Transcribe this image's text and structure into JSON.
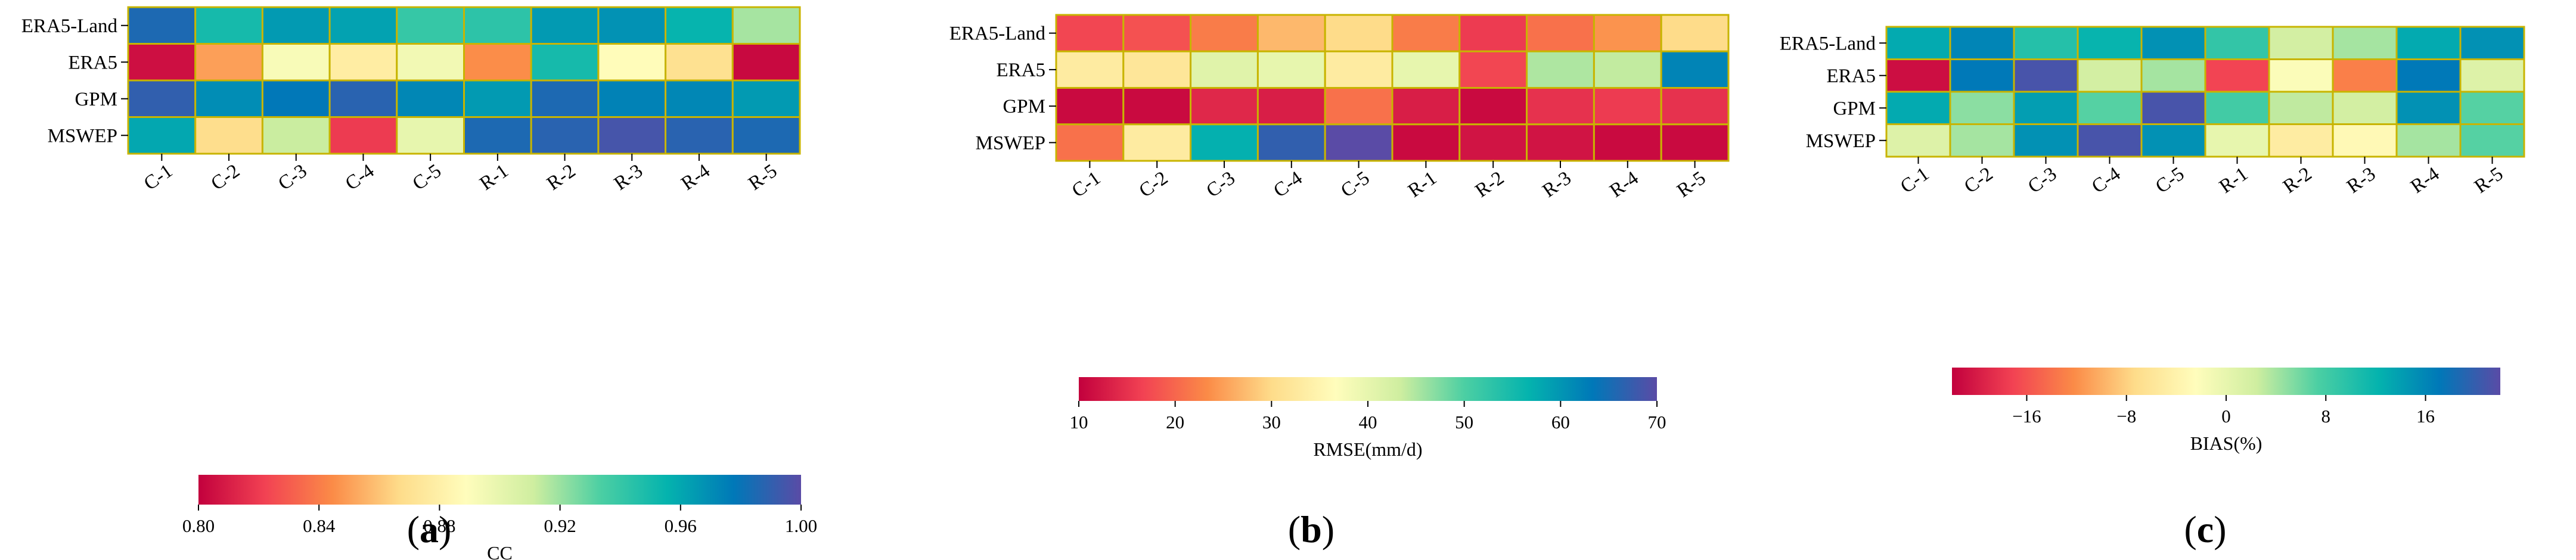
{
  "palette": [
    "#c2003d",
    "#f24253",
    "#fb8b47",
    "#fedc8a",
    "#fffdbc",
    "#cfeea0",
    "#4ccfa3",
    "#04b3ae",
    "#0078b8",
    "#5a4ba6"
  ],
  "chart_data": [
    {
      "type": "heatmap",
      "panel_open": "(",
      "panel_letter": "a",
      "panel_close": ")",
      "rows": [
        "ERA5-Land",
        "ERA5",
        "GPM",
        "MSWEP"
      ],
      "cols": [
        "C-1",
        "C-2",
        "C-3",
        "C-4",
        "C-5",
        "R-1",
        "R-2",
        "R-3",
        "R-4",
        "R-5"
      ],
      "values": [
        [
          0.985,
          0.95,
          0.965,
          0.962,
          0.94,
          0.943,
          0.965,
          0.968,
          0.955,
          0.918
        ],
        [
          0.805,
          0.85,
          0.892,
          0.878,
          0.895,
          0.845,
          0.95,
          0.888,
          0.87,
          0.803
        ],
        [
          0.99,
          0.97,
          0.978,
          0.988,
          0.972,
          0.965,
          0.985,
          0.974,
          0.972,
          0.965
        ],
        [
          0.96,
          0.868,
          0.912,
          0.82,
          0.9,
          0.985,
          0.988,
          0.995,
          0.988,
          0.985
        ]
      ],
      "vmin": 0.8,
      "vmax": 1.0,
      "colorbar_ticks": [
        "0.80",
        "0.84",
        "0.88",
        "0.92",
        "0.96",
        "1.00"
      ],
      "colorbar_tick_values": [
        0.8,
        0.84,
        0.88,
        0.92,
        0.96,
        1.0
      ],
      "colorbar_label": "CC"
    },
    {
      "type": "heatmap",
      "panel_open": "(",
      "panel_letter": "b",
      "panel_close": ")",
      "rows": [
        "ERA5-Land",
        "ERA5",
        "GPM",
        "MSWEP"
      ],
      "cols": [
        "C-1",
        "C-2",
        "C-3",
        "C-4",
        "C-5",
        "R-1",
        "R-2",
        "R-3",
        "R-4",
        "R-5"
      ],
      "values": [
        [
          17,
          18,
          22,
          27,
          30,
          22,
          16,
          21,
          24,
          30
        ],
        [
          33,
          32,
          41,
          40,
          33,
          40,
          17,
          45,
          44,
          62
        ],
        [
          11,
          11,
          14,
          13,
          21,
          13,
          11,
          15,
          16,
          15
        ],
        [
          21,
          33,
          57,
          67,
          70,
          11,
          12,
          12,
          11,
          11
        ]
      ],
      "vmin": 10,
      "vmax": 70,
      "colorbar_ticks": [
        "10",
        "20",
        "30",
        "40",
        "50",
        "60",
        "70"
      ],
      "colorbar_tick_values": [
        10,
        20,
        30,
        40,
        50,
        60,
        70
      ],
      "colorbar_label": "RMSE(mm/d)"
    },
    {
      "type": "heatmap",
      "panel_open": "(",
      "panel_letter": "c",
      "panel_close": ")",
      "rows": [
        "ERA5-Land",
        "ERA5",
        "GPM",
        "MSWEP"
      ],
      "cols": [
        "C-1",
        "C-2",
        "C-3",
        "C-4",
        "C-5",
        "R-1",
        "R-2",
        "R-3",
        "R-4",
        "R-5"
      ],
      "values": [
        [
          13,
          16,
          10,
          12,
          15,
          9,
          2,
          4,
          13,
          15
        ],
        [
          -21,
          17,
          21,
          2,
          4,
          -17,
          -2,
          -13,
          17,
          1
        ],
        [
          13,
          5,
          14,
          7,
          21,
          8,
          3,
          2,
          15,
          7
        ],
        [
          1,
          4,
          15,
          21,
          15,
          0,
          -5,
          -3,
          4,
          7
        ]
      ],
      "vmin": -22,
      "vmax": 22,
      "colorbar_ticks": [
        "−16",
        "−8",
        "0",
        "8",
        "16"
      ],
      "colorbar_tick_values": [
        -16,
        -8,
        0,
        8,
        16
      ],
      "colorbar_label": "BIAS(%)"
    }
  ]
}
